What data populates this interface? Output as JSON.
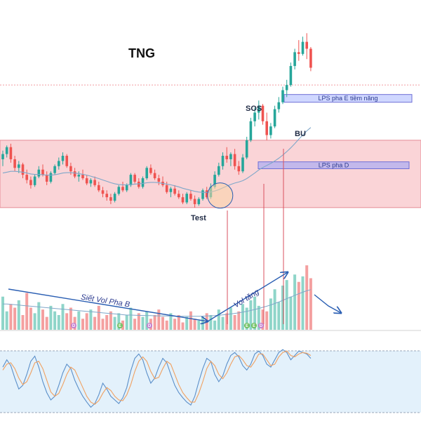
{
  "chart_data": {
    "type": "candlestick",
    "title": "TNG",
    "price_panel": {
      "candles": [
        [
          13.2,
          13.7,
          12.8,
          13.5
        ],
        [
          13.5,
          14.0,
          13.3,
          13.9
        ],
        [
          13.9,
          14.1,
          13.0,
          13.2
        ],
        [
          13.2,
          13.4,
          12.5,
          12.7
        ],
        [
          12.7,
          13.1,
          12.4,
          12.9
        ],
        [
          12.9,
          13.0,
          12.1,
          12.3
        ],
        [
          12.3,
          12.6,
          11.8,
          12.0
        ],
        [
          12.0,
          12.2,
          11.5,
          11.7
        ],
        [
          11.7,
          12.3,
          11.6,
          12.2
        ],
        [
          12.2,
          12.8,
          12.1,
          12.6
        ],
        [
          12.6,
          12.9,
          12.2,
          12.3
        ],
        [
          12.3,
          12.5,
          11.7,
          11.9
        ],
        [
          11.9,
          12.5,
          11.8,
          12.4
        ],
        [
          12.4,
          12.9,
          12.3,
          12.8
        ],
        [
          12.8,
          13.3,
          12.6,
          13.1
        ],
        [
          13.1,
          13.6,
          12.9,
          13.4
        ],
        [
          13.4,
          13.5,
          12.7,
          12.8
        ],
        [
          12.8,
          13.0,
          12.3,
          12.5
        ],
        [
          12.5,
          12.7,
          12.1,
          12.2
        ],
        [
          12.2,
          12.5,
          11.9,
          12.3
        ],
        [
          12.3,
          12.6,
          12.0,
          12.1
        ],
        [
          12.1,
          12.3,
          11.7,
          11.8
        ],
        [
          11.8,
          12.1,
          11.6,
          12.0
        ],
        [
          12.0,
          12.2,
          11.6,
          11.7
        ],
        [
          11.7,
          11.9,
          11.3,
          11.4
        ],
        [
          11.4,
          11.6,
          11.0,
          11.2
        ],
        [
          11.2,
          11.4,
          10.8,
          11.0
        ],
        [
          11.0,
          11.2,
          10.6,
          10.8
        ],
        [
          10.8,
          11.3,
          10.7,
          11.2
        ],
        [
          11.2,
          11.7,
          11.1,
          11.6
        ],
        [
          11.6,
          11.9,
          11.3,
          11.4
        ],
        [
          11.4,
          11.8,
          11.3,
          11.7
        ],
        [
          11.7,
          12.4,
          11.6,
          12.3
        ],
        [
          12.3,
          12.4,
          11.8,
          11.9
        ],
        [
          11.9,
          12.1,
          11.5,
          11.6
        ],
        [
          11.6,
          12.2,
          11.5,
          12.1
        ],
        [
          12.1,
          12.8,
          12.0,
          12.7
        ],
        [
          12.7,
          12.9,
          12.3,
          12.4
        ],
        [
          12.4,
          12.6,
          12.0,
          12.1
        ],
        [
          12.1,
          12.3,
          11.7,
          11.9
        ],
        [
          11.9,
          12.2,
          11.6,
          11.7
        ],
        [
          11.7,
          11.9,
          11.2,
          11.3
        ],
        [
          11.3,
          11.6,
          11.0,
          11.5
        ],
        [
          11.5,
          11.7,
          11.1,
          11.2
        ],
        [
          11.2,
          11.4,
          10.9,
          11.0
        ],
        [
          11.0,
          11.2,
          10.6,
          10.7
        ],
        [
          10.7,
          11.3,
          10.6,
          11.2
        ],
        [
          11.2,
          11.4,
          10.8,
          10.9
        ],
        [
          10.9,
          11.1,
          10.4,
          10.6
        ],
        [
          10.6,
          11.0,
          10.5,
          10.9
        ],
        [
          10.9,
          11.5,
          10.8,
          11.4
        ],
        [
          11.4,
          11.6,
          10.9,
          11.0
        ],
        [
          11.0,
          11.8,
          10.9,
          11.6
        ],
        [
          11.6,
          12.5,
          11.5,
          12.3
        ],
        [
          12.3,
          13.0,
          12.2,
          12.8
        ],
        [
          12.8,
          13.6,
          12.6,
          13.4
        ],
        [
          13.4,
          13.9,
          13.0,
          13.2
        ],
        [
          13.2,
          13.6,
          12.8,
          13.5
        ],
        [
          13.5,
          13.8,
          12.6,
          12.8
        ],
        [
          12.8,
          13.1,
          12.3,
          12.5
        ],
        [
          12.5,
          13.5,
          12.4,
          13.3
        ],
        [
          13.3,
          14.5,
          13.2,
          14.3
        ],
        [
          14.3,
          15.6,
          14.2,
          15.4
        ],
        [
          15.4,
          16.2,
          15.1,
          15.9
        ],
        [
          15.9,
          16.6,
          15.5,
          16.3
        ],
        [
          16.3,
          16.4,
          15.2,
          15.4
        ],
        [
          15.4,
          15.9,
          14.3,
          14.6
        ],
        [
          14.6,
          15.3,
          14.4,
          15.1
        ],
        [
          15.1,
          16.3,
          15.0,
          16.1
        ],
        [
          16.1,
          16.8,
          15.9,
          16.5
        ],
        [
          16.5,
          17.4,
          16.4,
          17.2
        ],
        [
          17.2,
          17.8,
          16.8,
          17.5
        ],
        [
          17.5,
          18.8,
          17.4,
          18.6
        ],
        [
          18.6,
          19.6,
          18.4,
          19.4
        ],
        [
          19.4,
          20.1,
          18.9,
          19.3
        ],
        [
          19.3,
          20.3,
          19.2,
          20.0
        ],
        [
          20.0,
          20.5,
          19.0,
          19.6
        ],
        [
          19.6,
          19.7,
          18.3,
          18.5
        ]
      ],
      "ma": [
        12.4,
        12.45,
        12.5,
        12.5,
        12.48,
        12.45,
        12.4,
        12.35,
        12.32,
        12.32,
        12.3,
        12.28,
        12.28,
        12.3,
        12.35,
        12.4,
        12.42,
        12.42,
        12.4,
        12.37,
        12.33,
        12.28,
        12.22,
        12.15,
        12.08,
        12.0,
        11.92,
        11.84,
        11.78,
        11.74,
        11.72,
        11.72,
        11.74,
        11.76,
        11.78,
        11.8,
        11.84,
        11.86,
        11.86,
        11.84,
        11.8,
        11.76,
        11.72,
        11.66,
        11.6,
        11.52,
        11.46,
        11.4,
        11.34,
        11.3,
        11.28,
        11.28,
        11.3,
        11.36,
        11.44,
        11.54,
        11.64,
        11.74,
        11.82,
        11.88,
        11.96,
        12.08,
        12.24,
        12.4,
        12.58,
        12.72,
        12.84,
        12.96,
        13.1,
        13.26,
        13.44,
        13.64,
        13.86,
        14.1,
        14.36,
        14.6,
        14.84,
        15.04
      ],
      "y_range": [
        9.5,
        21.0
      ]
    },
    "zones": [
      {
        "label": "",
        "low": 10.4,
        "high": 14.3,
        "color": "#f6b7bd"
      },
      {
        "label": "LPS pha D",
        "low": 12.65,
        "high": 13.05,
        "color": "#b9b3ee"
      },
      {
        "label": "LPS pha E tiềm năng",
        "low": 16.5,
        "high": 16.95,
        "color": "#c7d0ff"
      }
    ],
    "resistance_level": 17.5,
    "volume_panel": {
      "values": [
        18,
        10,
        14,
        12,
        16,
        8,
        20,
        12,
        9,
        15,
        11,
        7,
        13,
        10,
        8,
        14,
        9,
        12,
        7,
        10,
        6,
        9,
        11,
        7,
        13,
        6,
        8,
        10,
        7,
        9,
        5,
        8,
        12,
        6,
        9,
        7,
        10,
        6,
        8,
        11,
        7,
        5,
        9,
        6,
        8,
        4,
        7,
        10,
        6,
        5,
        7,
        9,
        8,
        5,
        11,
        7,
        9,
        12,
        8,
        10,
        14,
        12,
        16,
        18,
        13,
        11,
        10,
        17,
        22,
        15,
        24,
        27,
        18,
        30,
        26,
        29,
        35,
        28
      ],
      "ma": [
        14,
        14,
        13.8,
        13.6,
        13.4,
        13.2,
        13.0,
        12.8,
        12.6,
        12.4,
        12.2,
        12.0,
        11.8,
        11.6,
        11.4,
        11.2,
        11.0,
        10.8,
        10.6,
        10.4,
        10.2,
        10.0,
        9.8,
        9.6,
        9.4,
        9.2,
        9.0,
        8.8,
        8.6,
        8.4,
        8.2,
        8.0,
        8.0,
        7.9,
        7.8,
        7.8,
        7.7,
        7.7,
        7.6,
        7.6,
        7.5,
        7.5,
        7.4,
        7.4,
        7.3,
        7.3,
        7.3,
        7.3,
        7.3,
        7.3,
        7.4,
        7.5,
        7.6,
        7.7,
        7.9,
        8.1,
        8.3,
        8.6,
        8.9,
        9.2,
        9.6,
        10.0,
        10.5,
        11.0,
        11.6,
        12.2,
        12.8,
        13.5,
        14.3,
        15.1,
        16.0,
        16.9,
        17.8,
        18.7,
        19.6,
        20.4,
        21.2,
        21.8
      ],
      "max": 40
    },
    "oscillator_panel": {
      "k": [
        70,
        80,
        72,
        55,
        40,
        45,
        60,
        78,
        85,
        70,
        50,
        35,
        25,
        30,
        45,
        62,
        74,
        68,
        52,
        40,
        30,
        22,
        15,
        20,
        32,
        48,
        40,
        30,
        25,
        20,
        28,
        42,
        65,
        82,
        88,
        80,
        62,
        48,
        55,
        70,
        82,
        76,
        60,
        45,
        35,
        28,
        22,
        18,
        30,
        50,
        68,
        82,
        78,
        60,
        50,
        58,
        74,
        86,
        90,
        84,
        72,
        66,
        74,
        88,
        92,
        86,
        74,
        70,
        80,
        90,
        94,
        90,
        80,
        86,
        92,
        90,
        88,
        82
      ],
      "d": [
        66,
        74,
        76,
        68,
        55,
        46,
        50,
        62,
        76,
        78,
        68,
        52,
        36,
        30,
        34,
        46,
        60,
        70,
        66,
        54,
        42,
        30,
        22,
        19,
        24,
        34,
        42,
        38,
        30,
        25,
        24,
        32,
        46,
        64,
        78,
        84,
        78,
        64,
        54,
        56,
        68,
        78,
        74,
        60,
        46,
        35,
        28,
        22,
        22,
        34,
        50,
        68,
        78,
        72,
        60,
        54,
        62,
        74,
        84,
        86,
        80,
        72,
        70,
        78,
        88,
        88,
        80,
        72,
        74,
        84,
        90,
        92,
        86,
        84,
        88,
        90,
        89,
        86
      ],
      "upper": 80,
      "lower": 20
    },
    "annotations": [
      {
        "text": "SOS",
        "type": "label"
      },
      {
        "text": "BU",
        "type": "label"
      },
      {
        "text": "Test",
        "type": "label"
      },
      {
        "text": "Siết Vol Pha B",
        "type": "trend-arrow"
      },
      {
        "text": "Vol tăng",
        "type": "trend-arrow"
      }
    ],
    "event_markers": [
      "D",
      "E",
      "D",
      "E",
      "E",
      "D"
    ],
    "colors": {
      "up": "#26a69a",
      "down": "#ef5350",
      "volume_up": "#8fd5c9",
      "volume_down": "#f4a0a0",
      "ma": "#7fa7c9",
      "osc_k": "#5b8fc9",
      "osc_d": "#f0a060",
      "osc_band": "#e3f1fb",
      "arrow": "#2b5fb3",
      "highlight": "#f9d4a6"
    },
    "grid": false,
    "legend": "none"
  }
}
